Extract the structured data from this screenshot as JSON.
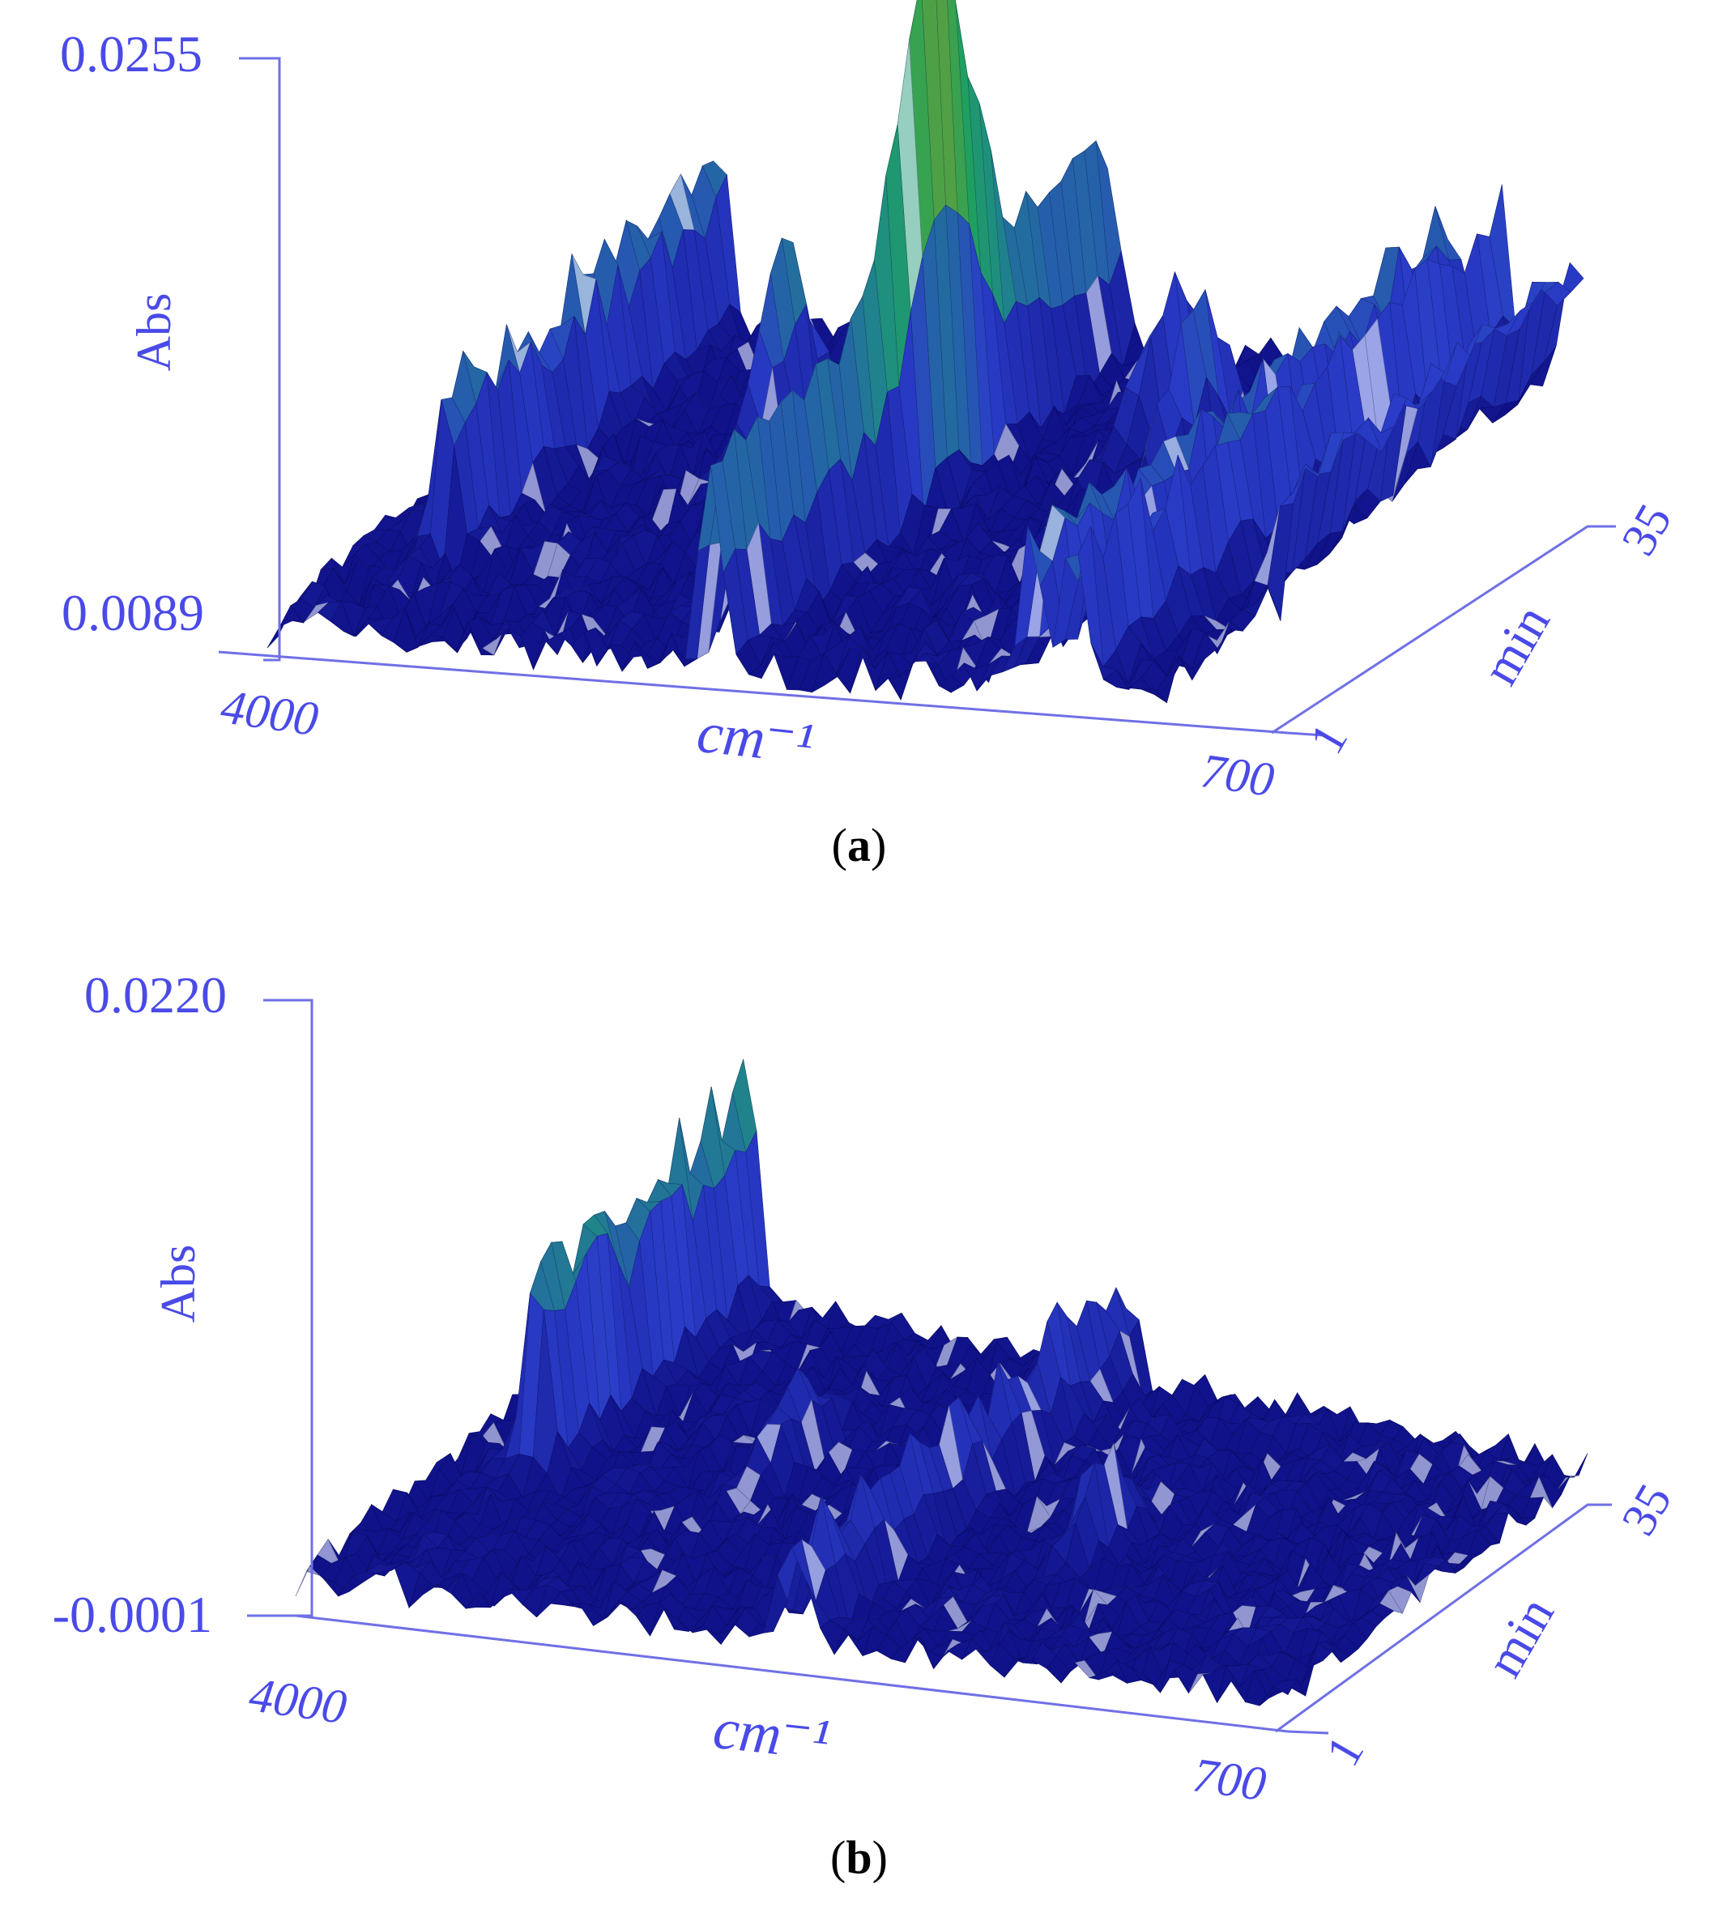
{
  "chart_data": [
    {
      "type": "surface",
      "panel_label": "a",
      "zlabel": "Abs",
      "xlabel": "cm⁻¹",
      "ylabel": "min",
      "zlim": [
        0.0089,
        0.0255
      ],
      "z_tick_labels": [
        "0.0255",
        "0.0089"
      ],
      "x_tick_labels": [
        "4000",
        "700"
      ],
      "y_tick_labels": [
        "1",
        "35"
      ],
      "xlim": [
        4000,
        700
      ],
      "ylim": [
        1,
        35
      ],
      "peaks": [
        {
          "x": 3700,
          "y_range": [
            10,
            35
          ],
          "z": 0.015,
          "kind": "ridge"
        },
        {
          "x": 3000,
          "y": 23,
          "z": 0.015
        },
        {
          "x": 2350,
          "y_range": [
            1,
            35
          ],
          "z": 0.0252,
          "kind": "ridge",
          "max_at_y": 20
        },
        {
          "x": 1800,
          "y": 27,
          "z": 0.014
        },
        {
          "x": 1550,
          "y": 23,
          "z": 0.0142
        },
        {
          "x": 1150,
          "y_range": [
            1,
            35
          ],
          "z": 0.0148,
          "kind": "ridge"
        },
        {
          "x": 1000,
          "y_range": [
            1,
            35
          ],
          "z": 0.0148,
          "kind": "ridge"
        },
        {
          "x": 720,
          "y_range": [
            12,
            35
          ],
          "z": 0.0135,
          "kind": "ridge"
        }
      ],
      "baseline_z": 0.0095
    },
    {
      "type": "surface",
      "panel_label": "b",
      "zlabel": "Abs",
      "xlabel": "cm⁻¹",
      "ylabel": "min",
      "zlim": [
        -0.0001,
        0.022
      ],
      "z_tick_labels": [
        "0.0220",
        "-0.0001"
      ],
      "x_tick_labels": [
        "4000",
        "700"
      ],
      "y_tick_labels": [
        "1",
        "35"
      ],
      "xlim": [
        4000,
        700
      ],
      "ylim": [
        1,
        35
      ],
      "peaks": [
        {
          "x": 3700,
          "y_range": [
            15,
            35
          ],
          "z": 0.01,
          "kind": "ridge"
        },
        {
          "x": 3000,
          "y": 20,
          "z": 0.004
        },
        {
          "x": 2350,
          "y_range": [
            1,
            35
          ],
          "z": 0.005,
          "kind": "ridge"
        },
        {
          "x": 1800,
          "y": 16,
          "z": 0.0045
        }
      ],
      "baseline_z": 0.001
    }
  ],
  "colors": {
    "axis": "#6f70e6",
    "axis_text": "#4a4ae8",
    "surface_low": "#10128a",
    "surface_mid": "#2a3cc8",
    "surface_teal": "#1f8a86",
    "surface_green": "#1fa35a",
    "surface_peak": "#b89a1a",
    "caption": "#000000"
  }
}
